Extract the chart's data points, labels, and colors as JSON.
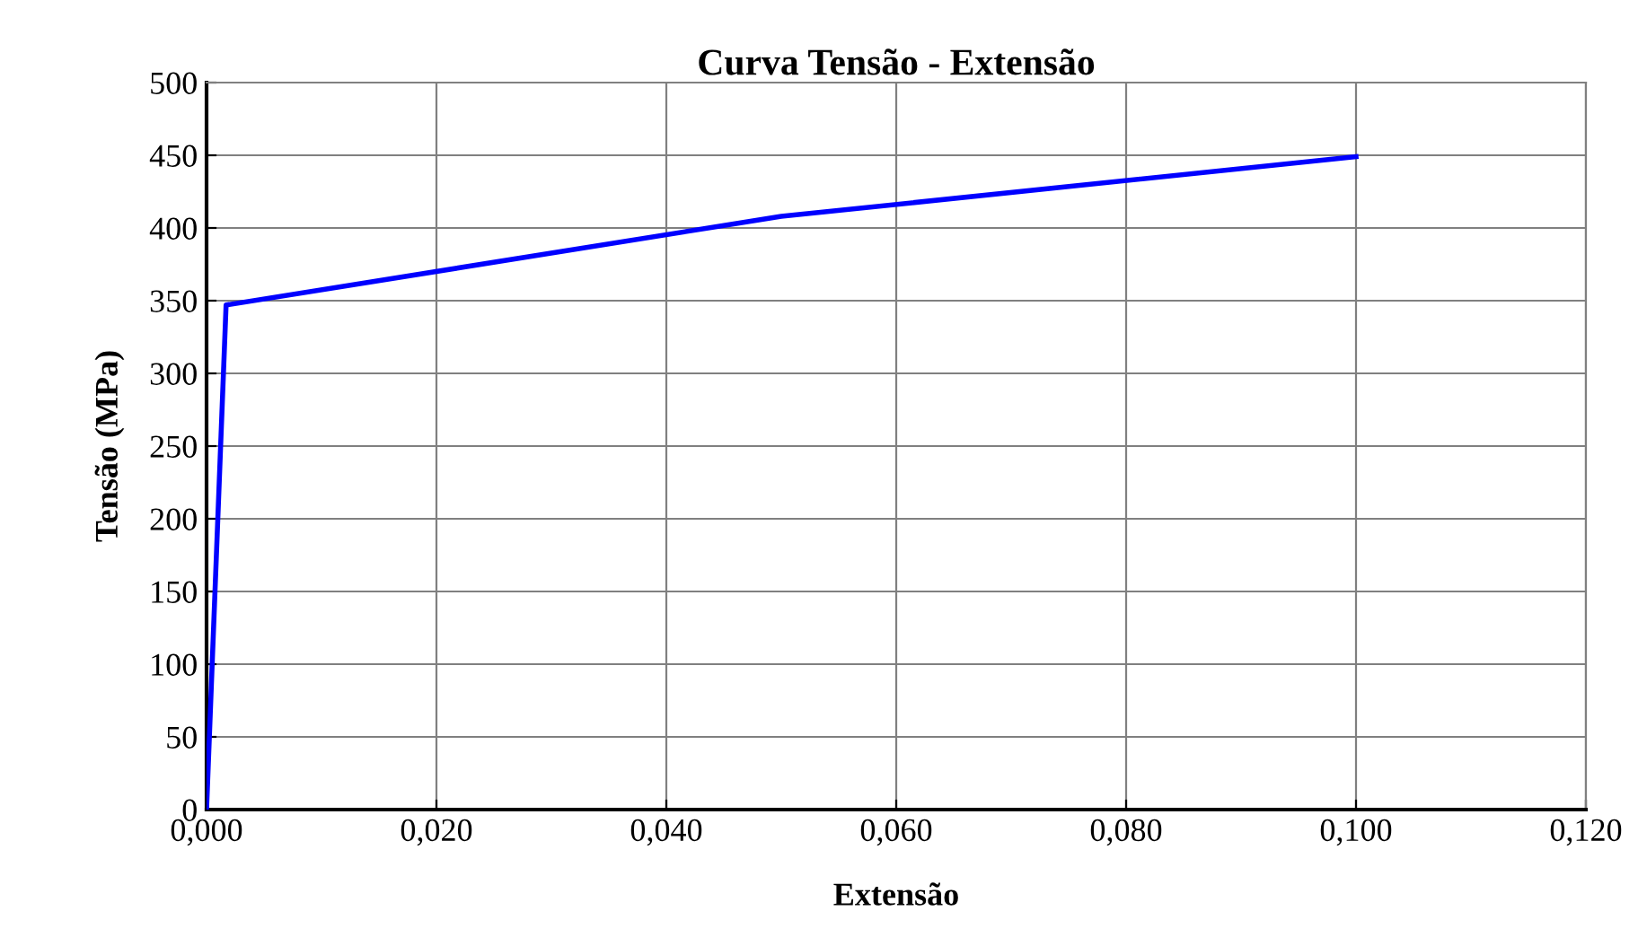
{
  "chart_data": {
    "type": "line",
    "title": "Curva Tensão - Extensão",
    "xlabel": "Extensão",
    "ylabel": "Tensão (MPa)",
    "series": [
      {
        "color": "#0000ff",
        "x": [
          0,
          0.0017,
          0.05,
          0.1
        ],
        "values": [
          0,
          347,
          408,
          449
        ]
      }
    ],
    "xlim": [
      0,
      0.12
    ],
    "xticks": [
      {
        "value": 0,
        "label": "0,000"
      },
      {
        "value": 0.02,
        "label": "0,020"
      },
      {
        "value": 0.04,
        "label": "0,040"
      },
      {
        "value": 0.06,
        "label": "0,060"
      },
      {
        "value": 0.08,
        "label": "0,080"
      },
      {
        "value": 0.1,
        "label": "0,100"
      },
      {
        "value": 0.12,
        "label": "0,120"
      }
    ],
    "ylim": [
      0,
      500
    ],
    "yticks": [
      0,
      50,
      100,
      150,
      200,
      250,
      300,
      350,
      400,
      450,
      500
    ],
    "grid": true,
    "marker": "none",
    "line_style": "solid"
  }
}
